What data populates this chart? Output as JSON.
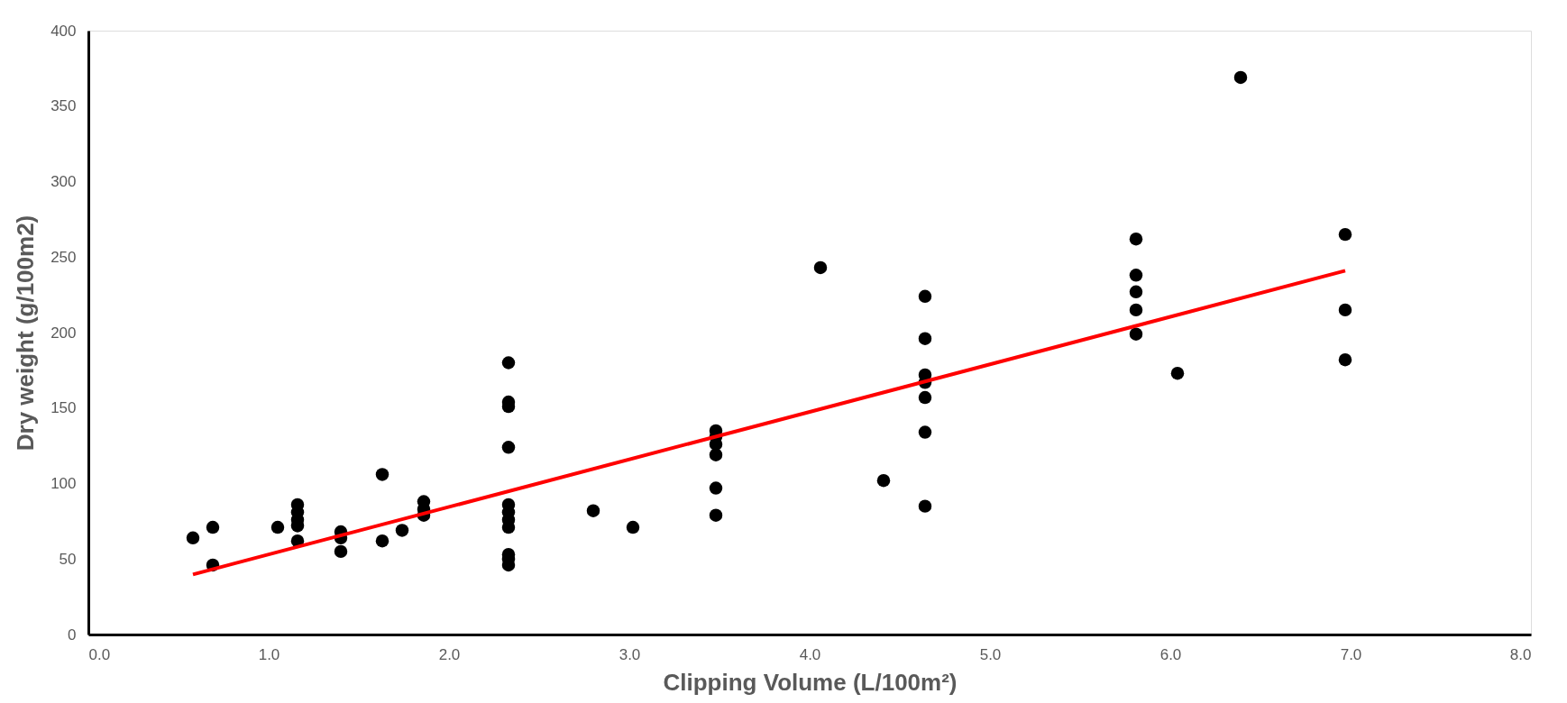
{
  "chart_data": {
    "type": "scatter",
    "xlabel": "Clipping Volume (L/100m²)",
    "ylabel": "Dry weight (g/100m2)",
    "xlim": [
      0,
      8
    ],
    "ylim": [
      0,
      400
    ],
    "xticks": [
      {
        "value": 0,
        "label": "0.0"
      },
      {
        "value": 1,
        "label": "1.0"
      },
      {
        "value": 2,
        "label": "2.0"
      },
      {
        "value": 3,
        "label": "3.0"
      },
      {
        "value": 4,
        "label": "4.0"
      },
      {
        "value": 5,
        "label": "5.0"
      },
      {
        "value": 6,
        "label": "6.0"
      },
      {
        "value": 7,
        "label": "7.0"
      },
      {
        "value": 8,
        "label": "8.0"
      }
    ],
    "yticks": [
      0,
      50,
      100,
      150,
      200,
      250,
      300,
      350,
      400
    ],
    "grid": false,
    "legend": false,
    "marker": "circle",
    "series": [
      {
        "color": "#000000",
        "x": [
          0.58,
          0.69,
          0.69,
          1.05,
          1.16,
          1.16,
          1.16,
          1.16,
          1.16,
          1.4,
          1.4,
          1.4,
          1.63,
          1.63,
          1.74,
          1.86,
          1.86,
          1.86,
          2.33,
          2.33,
          2.33,
          2.33,
          2.33,
          2.33,
          2.33,
          2.33,
          2.33,
          2.33,
          2.33,
          2.8,
          3.02,
          3.48,
          3.48,
          3.48,
          3.48,
          3.48,
          3.48,
          4.06,
          4.41,
          4.64,
          4.64,
          4.64,
          4.64,
          4.64,
          4.64,
          4.64,
          5.81,
          5.81,
          5.81,
          5.81,
          5.81,
          6.04,
          6.39,
          6.97,
          6.97,
          6.97
        ],
        "values": [
          64,
          71,
          46,
          71,
          86,
          81,
          76,
          72,
          62,
          68,
          64,
          55,
          106,
          62,
          69,
          88,
          83,
          79,
          180,
          154,
          151,
          124,
          86,
          81,
          76,
          71,
          53,
          50,
          46,
          82,
          71,
          135,
          131,
          126,
          119,
          97,
          79,
          243,
          102,
          224,
          196,
          172,
          167,
          157,
          134,
          85,
          262,
          238,
          227,
          215,
          199,
          173,
          369,
          265,
          215,
          182
        ]
      },
      {
        "type": "line",
        "color": "#ff0000",
        "line_style": "solid",
        "marker": "none",
        "x": [
          0.58,
          6.97
        ],
        "values": [
          39.8,
          241
        ]
      }
    ]
  }
}
